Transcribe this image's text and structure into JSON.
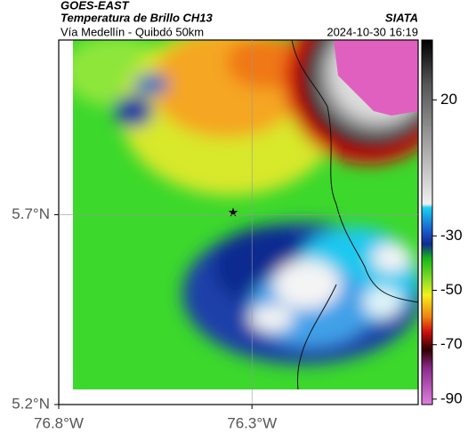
{
  "header": {
    "title": "GOES-EAST",
    "subtitle": "Temperatura de Brillo CH13",
    "region": "Vía Medellín - Quibdó 50km",
    "source": "SIATA",
    "datetime": "2024-10-30 16:19"
  },
  "map": {
    "xlim": [
      -76.8,
      -75.87
    ],
    "ylim": [
      5.2,
      6.16
    ],
    "xticks": [
      {
        "value": -76.8,
        "label": "76.8°W"
      },
      {
        "value": -76.3,
        "label": "76.3°W"
      }
    ],
    "yticks": [
      {
        "value": 5.7,
        "label": "5.7°N"
      },
      {
        "value": 5.2,
        "label": "5.2°N"
      }
    ],
    "grid": true
  },
  "colorbar": {
    "clim": [
      -92,
      42
    ],
    "ticks": [
      20,
      -30,
      -50,
      -70,
      -90
    ]
  }
}
